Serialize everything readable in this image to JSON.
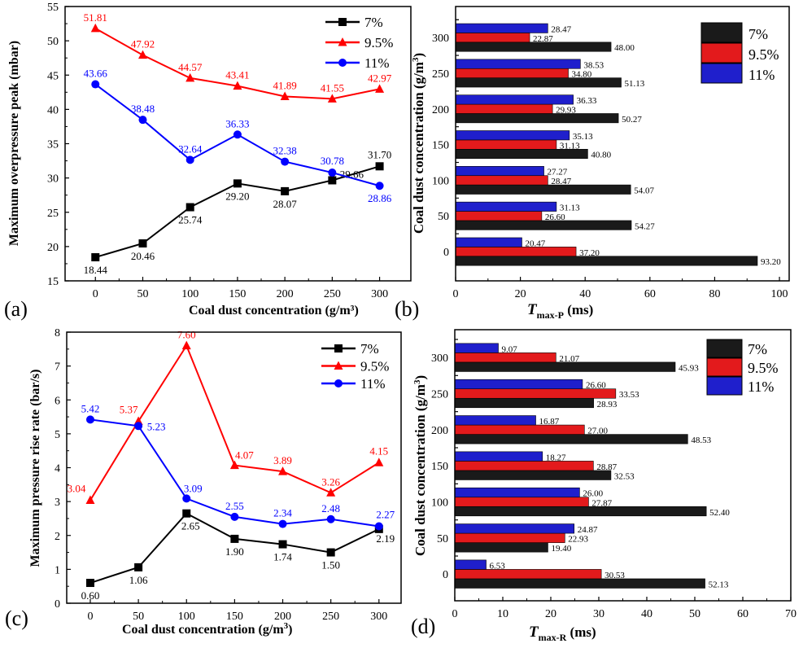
{
  "colors": {
    "7%": "#000000",
    "9.5%": "#ff0000",
    "11%": "#0000ff",
    "bar_7%": "#1a1a1a",
    "bar_9.5%": "#e31a1c",
    "bar_11%": "#1f1fcc"
  },
  "chart_data": [
    {
      "panel": "(a)",
      "type": "line",
      "xlabel": "Coal dust concentration (g/m³)",
      "ylabel": "Maximum overpressure peak (mbar)",
      "x": [
        0,
        50,
        100,
        150,
        200,
        250,
        300
      ],
      "xticks": [
        0,
        50,
        100,
        150,
        200,
        250,
        300
      ],
      "yticks": [
        15,
        20,
        25,
        30,
        35,
        40,
        45,
        50,
        55
      ],
      "xlim": [
        -32,
        333
      ],
      "ylim": [
        15,
        55
      ],
      "legend": "top-right",
      "grid": false,
      "series": [
        {
          "name": "7%",
          "marker": "square",
          "values": [
            18.44,
            20.46,
            25.74,
            29.2,
            28.07,
            29.66,
            31.7
          ],
          "labels": [
            "18.44",
            "20.46",
            "25.74",
            "29.20",
            "28.07",
            "29.66",
            "31.70"
          ]
        },
        {
          "name": "9.5%",
          "marker": "triangle",
          "values": [
            51.81,
            47.92,
            44.57,
            43.41,
            41.89,
            41.55,
            42.97
          ],
          "labels": [
            "51.81",
            "47.92",
            "44.57",
            "43.41",
            "41.89",
            "41.55",
            "42.97"
          ]
        },
        {
          "name": "11%",
          "marker": "circle",
          "values": [
            43.66,
            38.48,
            32.64,
            36.33,
            32.38,
            30.78,
            28.86
          ],
          "labels": [
            "43.66",
            "38.48",
            "32.64",
            "36.33",
            "32.38",
            "30.78",
            "28.86"
          ]
        }
      ]
    },
    {
      "panel": "(b)",
      "type": "bar",
      "orientation": "horizontal",
      "xlabel_main": "T",
      "xlabel_sub": "max-P",
      "xlabel_unit": " (ms)",
      "ylabel": "Coal dust concentration (g/m",
      "ylabel_sup": "3",
      "ylabel_end": ")",
      "categories": [
        "0",
        "50",
        "100",
        "150",
        "200",
        "250",
        "300"
      ],
      "xticks": [
        0,
        20,
        40,
        60,
        80,
        100
      ],
      "xlim": [
        0,
        103
      ],
      "legend": "top-right",
      "grid": false,
      "series": [
        {
          "name": "7%",
          "values": [
            93.2,
            54.27,
            54.07,
            40.8,
            50.27,
            51.13,
            48.0
          ],
          "labels": [
            "93.20",
            "54.27",
            "54.07",
            "40.80",
            "50.27",
            "51.13",
            "48.00"
          ]
        },
        {
          "name": "9.5%",
          "values": [
            37.2,
            26.6,
            28.47,
            31.13,
            29.93,
            34.8,
            22.87
          ],
          "labels": [
            "37.20",
            "26.60",
            "28.47",
            "31.13",
            "29.93",
            "34.80",
            "22.87"
          ]
        },
        {
          "name": "11%",
          "values": [
            20.47,
            31.13,
            27.27,
            35.13,
            36.33,
            38.53,
            28.47
          ],
          "labels": [
            "20.47",
            "31.13",
            "27.27",
            "35.13",
            "36.33",
            "38.53",
            "28.47"
          ]
        }
      ]
    },
    {
      "panel": "(c)",
      "type": "line",
      "xlabel": "Coal dust concentration (g/m",
      "xlabel_sup": "3",
      "xlabel_end": ")",
      "ylabel": "Maximum pressure rise rate (bar/s)",
      "x": [
        0,
        50,
        100,
        150,
        200,
        250,
        300
      ],
      "xticks": [
        0,
        50,
        100,
        150,
        200,
        250,
        300
      ],
      "yticks": [
        0,
        1,
        2,
        3,
        4,
        5,
        6,
        7,
        8
      ],
      "xlim": [
        -24.5,
        323
      ],
      "ylim": [
        0,
        8
      ],
      "legend": "top-right",
      "grid": false,
      "series": [
        {
          "name": "7%",
          "marker": "square",
          "values": [
            0.6,
            1.06,
            2.65,
            1.9,
            1.74,
            1.5,
            2.19
          ],
          "labels": [
            "0.60",
            "1.06",
            "2.65",
            "1.90",
            "1.74",
            "1.50",
            "2.19"
          ]
        },
        {
          "name": "9.5%",
          "marker": "triangle",
          "values": [
            3.04,
            5.37,
            7.6,
            4.07,
            3.89,
            3.26,
            4.15
          ],
          "labels": [
            "3.04",
            "5.37",
            "7.60",
            "4.07",
            "3.89",
            "3.26",
            "4.15"
          ]
        },
        {
          "name": "11%",
          "marker": "circle",
          "values": [
            5.42,
            5.23,
            3.09,
            2.55,
            2.34,
            2.48,
            2.27
          ],
          "labels": [
            "5.42",
            "5.23",
            "3.09",
            "2.55",
            "2.34",
            "2.48",
            "2.27"
          ]
        }
      ]
    },
    {
      "panel": "(d)",
      "type": "bar",
      "orientation": "horizontal",
      "xlabel_main": "T",
      "xlabel_sub": "max-R",
      "xlabel_unit": " (ms)",
      "ylabel": "Coal dust concentration (g/m",
      "ylabel_sup": "3",
      "ylabel_end": ")",
      "categories": [
        "0",
        "50",
        "100",
        "150",
        "200",
        "250",
        "300"
      ],
      "xticks": [
        0,
        10,
        20,
        30,
        40,
        50,
        60,
        70
      ],
      "xlim": [
        0,
        70
      ],
      "legend": "top-right",
      "grid": false,
      "series": [
        {
          "name": "7%",
          "values": [
            52.13,
            19.4,
            52.4,
            32.53,
            48.53,
            28.93,
            45.93
          ],
          "labels": [
            "52.13",
            "19.40",
            "52.40",
            "32.53",
            "48.53",
            "28.93",
            "45.93"
          ]
        },
        {
          "name": "9.5%",
          "values": [
            30.53,
            22.93,
            27.87,
            28.87,
            27.0,
            33.53,
            21.07
          ],
          "labels": [
            "30.53",
            "22.93",
            "27.87",
            "28.87",
            "27.00",
            "33.53",
            "21.07"
          ]
        },
        {
          "name": "11%",
          "values": [
            6.53,
            24.87,
            26.0,
            18.27,
            16.87,
            26.6,
            9.07
          ],
          "labels": [
            "6.53",
            "24.87",
            "26.00",
            "18.27",
            "16.87",
            "26.60",
            "9.07"
          ]
        }
      ]
    }
  ]
}
